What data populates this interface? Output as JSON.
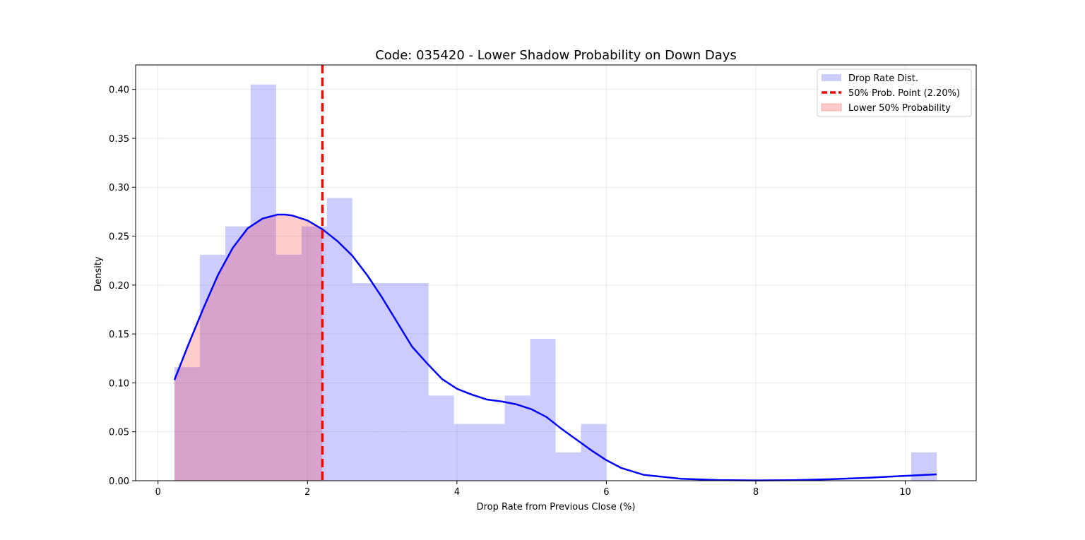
{
  "chart_data": {
    "type": "bar",
    "title": "Code: 035420 - Lower Shadow Probability on Down Days",
    "xlabel": "Drop Rate from Previous Close (%)",
    "ylabel": "Density",
    "xlim": [
      -0.3,
      10.95
    ],
    "ylim": [
      0,
      0.425
    ],
    "xticks": [
      0,
      2,
      4,
      6,
      8,
      10
    ],
    "xtick_labels": [
      "0",
      "2",
      "4",
      "6",
      "8",
      "10"
    ],
    "yticks": [
      0.0,
      0.05,
      0.1,
      0.15,
      0.2,
      0.25,
      0.3,
      0.35,
      0.4
    ],
    "ytick_labels": [
      "0.00",
      "0.05",
      "0.10",
      "0.15",
      "0.20",
      "0.25",
      "0.30",
      "0.35",
      "0.40"
    ],
    "grid": true,
    "legend_position": "top-right",
    "legend": [
      {
        "label": "Drop Rate Dist.",
        "kind": "patch"
      },
      {
        "label": "50% Prob. Point (2.20%)",
        "kind": "dashed-line"
      },
      {
        "label": "Lower 50% Probability",
        "kind": "fill"
      }
    ],
    "histogram": {
      "name": "Drop Rate Dist.",
      "bin_edges": [
        0.22,
        0.56,
        0.9,
        1.24,
        1.58,
        1.92,
        2.26,
        2.6,
        2.94,
        3.28,
        3.62,
        3.96,
        4.3,
        4.64,
        4.98,
        5.32,
        5.66,
        6.0,
        6.34,
        6.68,
        7.02,
        7.36,
        7.7,
        8.04,
        8.38,
        8.72,
        9.06,
        9.4,
        9.74,
        10.08,
        10.42
      ],
      "densities": [
        0.116,
        0.231,
        0.26,
        0.405,
        0.231,
        0.26,
        0.289,
        0.202,
        0.202,
        0.202,
        0.087,
        0.058,
        0.058,
        0.087,
        0.145,
        0.029,
        0.058,
        0,
        0,
        0,
        0,
        0,
        0,
        0,
        0,
        0,
        0,
        0,
        0,
        0.029
      ]
    },
    "kde": {
      "x": [
        0.22,
        0.4,
        0.6,
        0.8,
        1.0,
        1.2,
        1.4,
        1.6,
        1.7,
        1.8,
        2.0,
        2.2,
        2.4,
        2.6,
        2.8,
        3.0,
        3.2,
        3.4,
        3.6,
        3.8,
        4.0,
        4.2,
        4.4,
        4.6,
        4.8,
        5.0,
        5.2,
        5.4,
        5.6,
        5.8,
        6.0,
        6.2,
        6.5,
        7.0,
        7.5,
        8.0,
        8.5,
        9.0,
        9.5,
        10.0,
        10.42
      ],
      "y": [
        0.103,
        0.138,
        0.175,
        0.21,
        0.238,
        0.258,
        0.268,
        0.272,
        0.272,
        0.271,
        0.266,
        0.257,
        0.245,
        0.23,
        0.21,
        0.187,
        0.162,
        0.137,
        0.12,
        0.104,
        0.094,
        0.088,
        0.083,
        0.081,
        0.078,
        0.073,
        0.065,
        0.053,
        0.042,
        0.031,
        0.021,
        0.013,
        0.006,
        0.002,
        0.0006,
        0.0003,
        0.0005,
        0.0015,
        0.003,
        0.005,
        0.0065
      ]
    },
    "threshold": {
      "x": 2.2,
      "label": "50% Prob. Point (2.20%)"
    },
    "colors": {
      "hist": "#0000ff",
      "kde": "#0000ff",
      "threshold": "#ff0000",
      "fill": "#ff0000"
    }
  }
}
